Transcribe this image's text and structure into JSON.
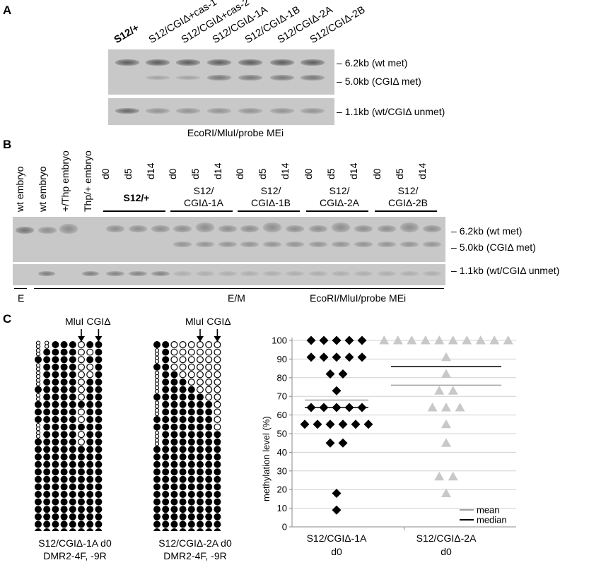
{
  "panel_a": {
    "letter": "A",
    "lanes": [
      "S12/+",
      "S12/CGIΔ+cas-1",
      "S12/CGIΔ+cas-2",
      "S12/CGIΔ-1A",
      "S12/CGIΔ-1B",
      "S12/CGIΔ-2A",
      "S12/CGIΔ-2B"
    ],
    "bands": [
      "6.2kb (wt met)",
      "5.0kb (CGIΔ met)",
      "1.1kb (wt/CGIΔ unmet)"
    ],
    "caption": "EcoRI/MluI/probe MEi"
  },
  "panel_b": {
    "letter": "B",
    "lanes": [
      "wt embryo",
      "wt embryo",
      "+/Thp embryo",
      "Thp/+ embryo"
    ],
    "days": [
      "d0",
      "d5",
      "d14"
    ],
    "groups": [
      {
        "line1": "S12/+",
        "line2": ""
      },
      {
        "line1": "S12/",
        "line2": "CGIΔ-1A"
      },
      {
        "line1": "S12/",
        "line2": "CGIΔ-1B"
      },
      {
        "line1": "S12/",
        "line2": "CGIΔ-2A"
      },
      {
        "line1": "S12/",
        "line2": "CGIΔ-2B"
      }
    ],
    "bands": [
      "6.2kb (wt met)",
      "5.0kb (CGIΔ met)",
      "1.1kb (wt/CGIΔ unmet)"
    ],
    "label_e": "E",
    "label_em": "E/M",
    "caption": "EcoRI/MluI/probe MEi"
  },
  "panel_c": {
    "letter": "C",
    "marker_label": "MluI CGIΔ",
    "bisulfite_left": {
      "caption1": "S12/CGIΔ-1A d0",
      "caption2": "DMR2-4F, -9R",
      "rows": [
        "88000100",
        "80000110",
        "00000100",
        "80000110",
        "80000110",
        "80000100",
        "00000100",
        "80000100",
        "00000000",
        "00000100",
        "00000100",
        "80000000",
        "80000100",
        "00000100",
        "00000000",
        "00000000",
        "00000000",
        "00000000",
        "00000000",
        "00000000",
        "00000000",
        "00000000",
        "00000000",
        "00000000",
        "00000000",
        "00000000"
      ]
    },
    "bisulfite_right": {
      "caption1": "S12/CGIΔ-2A d0",
      "caption2": "DMR2-4F, -9R",
      "rows": [
        "00111111",
        "80111111",
        "80111111",
        "00111111",
        "80011111",
        "80001111",
        "80000111",
        "00000011",
        "80000001",
        "80000001",
        "00000001",
        "00000001",
        "80000000",
        "80000000",
        "00000000",
        "00000000",
        "00000000",
        "00000000",
        "00000000",
        "00000000",
        "00000000",
        "00000000",
        "00000000",
        "00000000",
        "00000000",
        "00000000"
      ]
    },
    "chart_data": {
      "type": "scatter",
      "ylabel": "methylation level (%)",
      "ylim": [
        0,
        100
      ],
      "yticks": [
        0,
        10,
        20,
        30,
        40,
        50,
        60,
        70,
        80,
        90,
        100
      ],
      "categories": [
        "S12/CGIΔ-1A d0",
        "S12/CGIΔ-2A d0"
      ],
      "series": [
        {
          "name": "S12/CGIΔ-1A d0",
          "marker": "diamond",
          "color": "#000000",
          "values": [
            100,
            100,
            100,
            100,
            100,
            91,
            91,
            91,
            91,
            91,
            82,
            82,
            73,
            64,
            64,
            64,
            64,
            64,
            55,
            55,
            55,
            55,
            55,
            55,
            45,
            45,
            18,
            9
          ],
          "mean": 68,
          "median": 64
        },
        {
          "name": "S12/CGIΔ-2A d0",
          "marker": "triangle",
          "color": "#c8c8c8",
          "values": [
            100,
            100,
            100,
            100,
            100,
            100,
            100,
            100,
            100,
            100,
            91,
            82,
            73,
            73,
            64,
            64,
            64,
            55,
            45,
            27,
            27,
            18
          ],
          "mean": 76,
          "median": 86
        }
      ],
      "legend": {
        "mean": "mean",
        "median": "median",
        "mean_color": "#a0a0a0",
        "median_color": "#000000",
        "position": "bottom-right"
      },
      "x_labels": [
        {
          "line1": "S12/CGIΔ-1A",
          "line2": "d0"
        },
        {
          "line1": "S12/CGIΔ-2A",
          "line2": "d0"
        }
      ]
    }
  }
}
